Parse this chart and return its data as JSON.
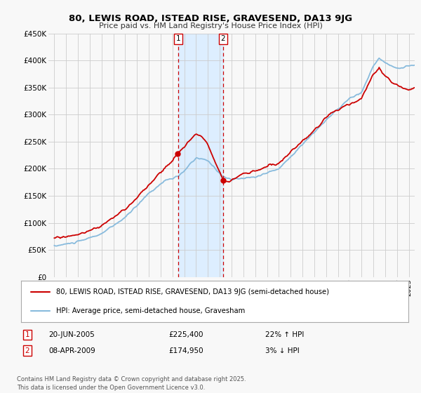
{
  "title": "80, LEWIS ROAD, ISTEAD RISE, GRAVESEND, DA13 9JG",
  "subtitle": "Price paid vs. HM Land Registry's House Price Index (HPI)",
  "ylabel_ticks": [
    "£0",
    "£50K",
    "£100K",
    "£150K",
    "£200K",
    "£250K",
    "£300K",
    "£350K",
    "£400K",
    "£450K"
  ],
  "ylim": [
    0,
    450000
  ],
  "xlim_start": 1994.5,
  "xlim_end": 2025.5,
  "marker1_x": 2005.47,
  "marker2_x": 2009.27,
  "marker1_date": "20-JUN-2005",
  "marker1_price": "£225,400",
  "marker1_hpi": "22% ↑ HPI",
  "marker2_date": "08-APR-2009",
  "marker2_price": "£174,950",
  "marker2_hpi": "3% ↓ HPI",
  "legend_line1": "80, LEWIS ROAD, ISTEAD RISE, GRAVESEND, DA13 9JG (semi-detached house)",
  "legend_line2": "HPI: Average price, semi-detached house, Gravesham",
  "footer": "Contains HM Land Registry data © Crown copyright and database right 2025.\nThis data is licensed under the Open Government Licence v3.0.",
  "line_color_red": "#cc0000",
  "line_color_blue": "#88bbdd",
  "highlight_color": "#ddeeff",
  "background_color": "#f8f8f8",
  "grid_color": "#cccccc"
}
